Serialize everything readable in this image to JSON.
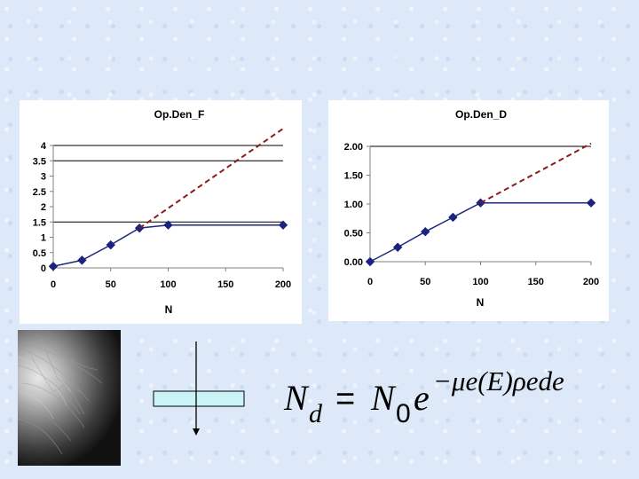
{
  "chart_data": [
    {
      "type": "line",
      "title": "Op.Den_F",
      "xlabel": "N",
      "ylabel": "",
      "x_ticks": [
        "0",
        "50",
        "100",
        "150",
        "200"
      ],
      "y_ticks": [
        "0",
        "0.5",
        "1",
        "1.5",
        "2",
        "2.5",
        "3",
        "3.5",
        "4"
      ],
      "xlim": [
        0,
        200
      ],
      "ylim": [
        0,
        4
      ],
      "gridlines_y": [
        1.5,
        3.5,
        4
      ],
      "series": [
        {
          "style": "solid",
          "color": "#1f2a7a",
          "marker": "diamond",
          "x": [
            0,
            25,
            50,
            75,
            100,
            200
          ],
          "y": [
            0.05,
            0.25,
            0.75,
            1.3,
            1.4,
            1.4
          ]
        },
        {
          "style": "dashed",
          "color": "#8b1a1a",
          "x": [
            75,
            200
          ],
          "y": [
            1.3,
            4.55
          ]
        }
      ]
    },
    {
      "type": "line",
      "title": "Op.Den_D",
      "xlabel": "N",
      "ylabel": "",
      "x_ticks": [
        "0",
        "50",
        "100",
        "150",
        "200"
      ],
      "y_ticks": [
        "0.00",
        "0.50",
        "1.00",
        "1.50",
        "2.00"
      ],
      "xlim": [
        0,
        200
      ],
      "ylim": [
        0,
        2
      ],
      "gridlines_y": [
        2
      ],
      "series": [
        {
          "style": "solid",
          "color": "#1f2a7a",
          "marker": "diamond",
          "x": [
            0,
            25,
            50,
            75,
            100,
            200
          ],
          "y": [
            0.0,
            0.25,
            0.52,
            0.77,
            1.02,
            1.02
          ]
        },
        {
          "style": "dashed",
          "color": "#8b1a1a",
          "x": [
            100,
            200
          ],
          "y": [
            1.02,
            2.05
          ]
        }
      ]
    }
  ],
  "formula": {
    "lhs": "N",
    "lhs_sub": "d",
    "eq": " = ",
    "rhs": "N",
    "rhs_sub": "0",
    "base": "e",
    "exponent": "−μe(E)ρede"
  },
  "colors": {
    "background": "#dde9f8",
    "attenuator_fill": "#c9f3f6"
  },
  "icons": {
    "mammogram": "mammogram-image",
    "beam": "x-ray-beam-arrow-icon",
    "attenuator": "attenuator-slab-icon"
  }
}
